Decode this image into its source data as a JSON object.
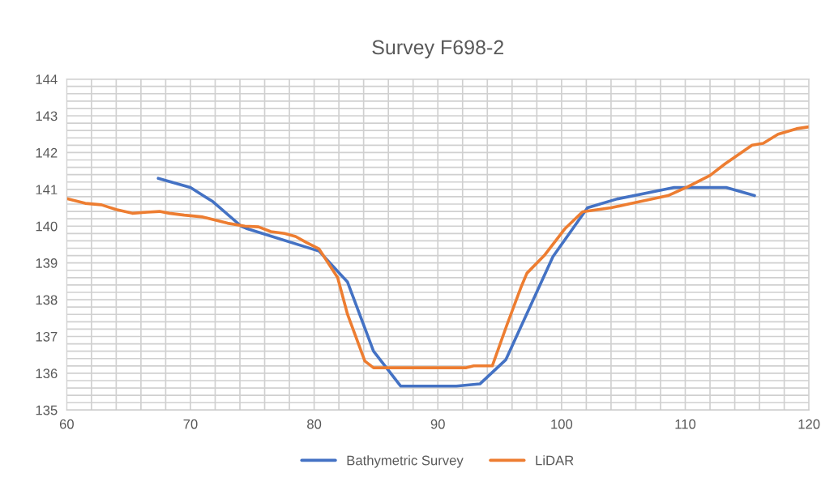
{
  "chart_data": {
    "type": "line",
    "title": "Survey F698-2",
    "xlim": [
      60,
      120
    ],
    "ylim": [
      135,
      144
    ],
    "xticks": [
      60,
      {
        "value": 62,
        "label": null
      },
      {
        "value": 64,
        "label": null
      },
      {
        "value": 66,
        "label": null
      },
      {
        "value": 68,
        "label": null
      },
      70,
      {
        "value": 72,
        "label": null
      },
      {
        "value": 74,
        "label": null
      },
      {
        "value": 76,
        "label": null
      },
      {
        "value": 78,
        "label": null
      },
      80,
      {
        "value": 82,
        "label": null
      },
      {
        "value": 84,
        "label": null
      },
      {
        "value": 86,
        "label": null
      },
      {
        "value": 88,
        "label": null
      },
      90,
      {
        "value": 92,
        "label": null
      },
      {
        "value": 94,
        "label": null
      },
      {
        "value": 96,
        "label": null
      },
      {
        "value": 98,
        "label": null
      },
      100,
      {
        "value": 102,
        "label": null
      },
      {
        "value": 104,
        "label": null
      },
      {
        "value": 106,
        "label": null
      },
      {
        "value": 108,
        "label": null
      },
      110,
      {
        "value": 112,
        "label": null
      },
      {
        "value": 114,
        "label": null
      },
      {
        "value": 116,
        "label": null
      },
      {
        "value": 118,
        "label": null
      },
      120
    ],
    "yticks": [
      135,
      {
        "value": 135.2,
        "label": null
      },
      {
        "value": 135.4,
        "label": null
      },
      {
        "value": 135.6,
        "label": null
      },
      {
        "value": 135.8,
        "label": null
      },
      136,
      {
        "value": 136.2,
        "label": null
      },
      {
        "value": 136.4,
        "label": null
      },
      {
        "value": 136.6,
        "label": null
      },
      {
        "value": 136.8,
        "label": null
      },
      137,
      {
        "value": 137.2,
        "label": null
      },
      {
        "value": 137.4,
        "label": null
      },
      {
        "value": 137.6,
        "label": null
      },
      {
        "value": 137.8,
        "label": null
      },
      138,
      {
        "value": 138.2,
        "label": null
      },
      {
        "value": 138.4,
        "label": null
      },
      {
        "value": 138.6,
        "label": null
      },
      {
        "value": 138.8,
        "label": null
      },
      139,
      {
        "value": 139.2,
        "label": null
      },
      {
        "value": 139.4,
        "label": null
      },
      {
        "value": 139.6,
        "label": null
      },
      {
        "value": 139.8,
        "label": null
      },
      140,
      {
        "value": 140.2,
        "label": null
      },
      {
        "value": 140.4,
        "label": null
      },
      {
        "value": 140.6,
        "label": null
      },
      {
        "value": 140.8,
        "label": null
      },
      141,
      {
        "value": 141.2,
        "label": null
      },
      {
        "value": 141.4,
        "label": null
      },
      {
        "value": 141.6,
        "label": null
      },
      {
        "value": 141.8,
        "label": null
      },
      142,
      {
        "value": 142.2,
        "label": null
      },
      {
        "value": 142.4,
        "label": null
      },
      {
        "value": 142.6,
        "label": null
      },
      {
        "value": 142.8,
        "label": null
      },
      143,
      {
        "value": 143.2,
        "label": null
      },
      {
        "value": 143.4,
        "label": null
      },
      {
        "value": 143.6,
        "label": null
      },
      {
        "value": 143.8,
        "label": null
      },
      144
    ],
    "grid": true,
    "legend": "bottom",
    "marker": "none",
    "line_style": "solid",
    "series": [
      {
        "name": "Bathymetric Survey",
        "color": "#4472c4",
        "x": [
          67.4,
          70.0,
          71.8,
          74.1,
          74.5,
          80.4,
          82.7,
          84.8,
          87.0,
          91.5,
          93.4,
          95.5,
          99.3,
          102.1,
          104.5,
          109.1,
          113.3,
          115.6
        ],
        "values": [
          141.3,
          141.05,
          140.67,
          140.0,
          139.94,
          139.32,
          138.48,
          136.6,
          135.65,
          135.65,
          135.71,
          136.37,
          139.17,
          140.5,
          140.74,
          141.05,
          141.05,
          140.83
        ]
      },
      {
        "name": "LiDAR",
        "color": "#ed7d31",
        "x": [
          60,
          61.5,
          62.8,
          64,
          65.3,
          66.5,
          67.5,
          68.3,
          69.5,
          71,
          72.2,
          73,
          74.4,
          75.5,
          76.5,
          77.6,
          78.5,
          79.4,
          80.4,
          81.9,
          82.7,
          84.1,
          84.8,
          92.3,
          92.9,
          94.4,
          95.6,
          96.7,
          97.2,
          98.6,
          100.3,
          101.7,
          104.0,
          108.6,
          110.2,
          112.0,
          113.2,
          115.4,
          116.3,
          117.5,
          119.0,
          120
        ],
        "values": [
          140.75,
          140.62,
          140.58,
          140.45,
          140.35,
          140.38,
          140.4,
          140.35,
          140.3,
          140.25,
          140.15,
          140.08,
          140.0,
          139.98,
          139.85,
          139.8,
          139.72,
          139.55,
          139.38,
          138.6,
          137.6,
          136.33,
          136.15,
          136.15,
          136.2,
          136.2,
          137.33,
          138.32,
          138.72,
          139.2,
          139.94,
          140.39,
          140.5,
          140.83,
          141.07,
          141.38,
          141.69,
          142.2,
          142.25,
          142.5,
          142.65,
          142.7
        ]
      }
    ]
  }
}
